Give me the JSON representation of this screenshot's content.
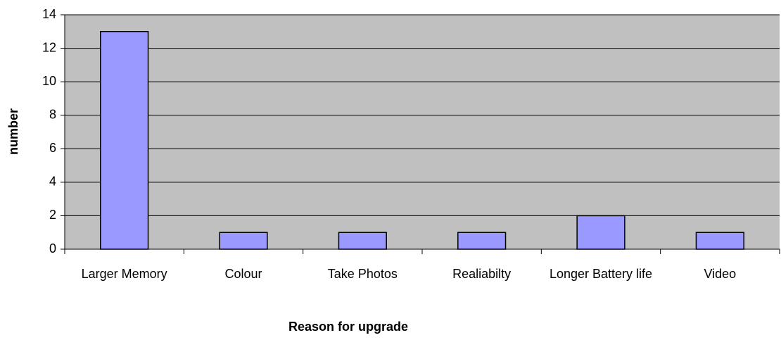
{
  "chart_data": {
    "type": "bar",
    "categories": [
      "Larger Memory",
      "Colour",
      "Take Photos",
      "Realiabilty",
      "Longer Battery life",
      "Video"
    ],
    "values": [
      13,
      1,
      1,
      1,
      2,
      1
    ],
    "color": "#9999ff",
    "ylim": [
      0,
      14
    ],
    "yticks": [
      0,
      2,
      4,
      6,
      8,
      10,
      12,
      14
    ],
    "grid": true,
    "x_label": "Reason for upgrade",
    "y_label": "number"
  }
}
